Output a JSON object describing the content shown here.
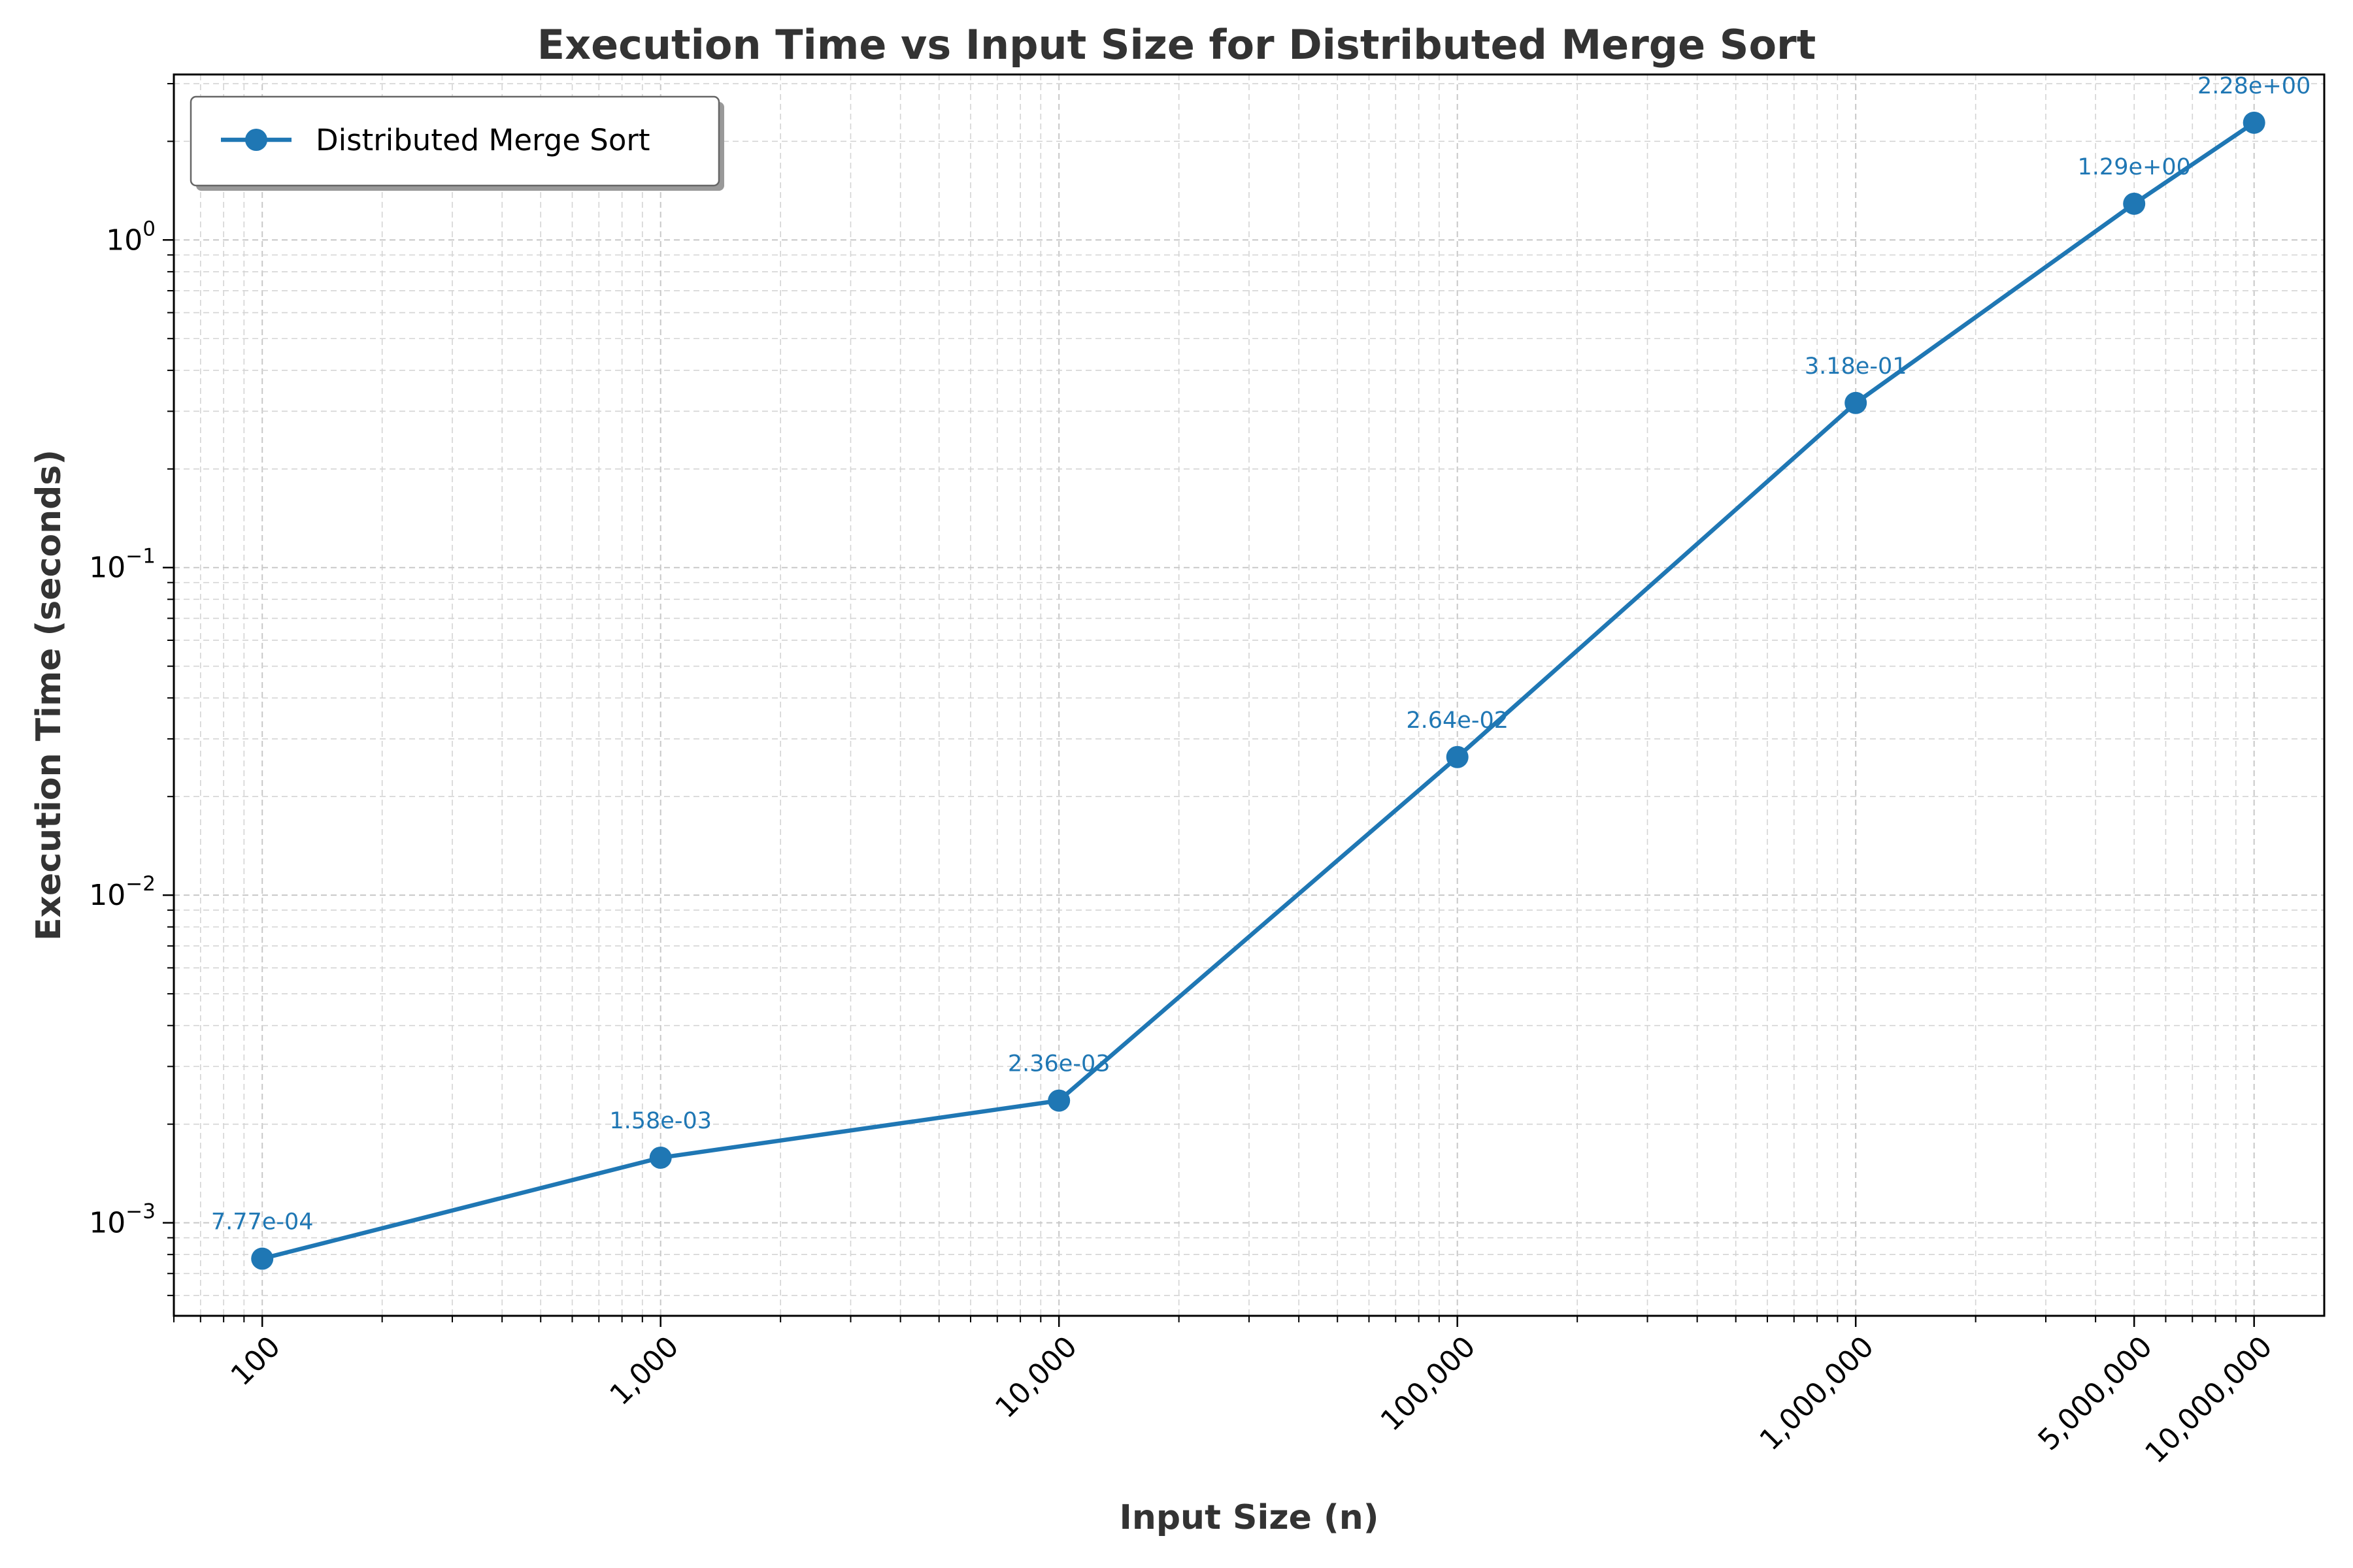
{
  "chart_data": {
    "type": "line",
    "title": "Execution Time vs Input Size for Distributed Merge Sort",
    "xlabel": "Input Size (n)",
    "ylabel": "Execution Time (seconds)",
    "xscale": "log",
    "yscale": "log",
    "xlim": [
      60,
      15000000
    ],
    "ylim": [
      0.00052,
      3.2
    ],
    "x_ticks": [
      100,
      1000,
      10000,
      100000,
      1000000,
      5000000,
      10000000
    ],
    "x_tick_labels": [
      "100",
      "1,000",
      "10,000",
      "100,000",
      "1,000,000",
      "5,000,000",
      "10,000,000"
    ],
    "y_ticks": [
      {
        "value": 0.001,
        "base": "10",
        "exp": "−3"
      },
      {
        "value": 0.01,
        "base": "10",
        "exp": "−2"
      },
      {
        "value": 0.1,
        "base": "10",
        "exp": "−1"
      },
      {
        "value": 1,
        "base": "10",
        "exp": "0"
      }
    ],
    "grid": true,
    "legend_position": "top-left",
    "series": [
      {
        "name": "Distributed Merge Sort",
        "color": "#1f77b4",
        "x": [
          100,
          1000,
          10000,
          100000,
          1000000,
          5000000,
          10000000
        ],
        "y": [
          0.000777,
          0.00158,
          0.00236,
          0.0264,
          0.318,
          1.29,
          2.28
        ],
        "labels": [
          "7.77e-04",
          "1.58e-03",
          "2.36e-03",
          "2.64e-02",
          "3.18e-01",
          "1.29e+00",
          "2.28e+00"
        ]
      }
    ]
  }
}
